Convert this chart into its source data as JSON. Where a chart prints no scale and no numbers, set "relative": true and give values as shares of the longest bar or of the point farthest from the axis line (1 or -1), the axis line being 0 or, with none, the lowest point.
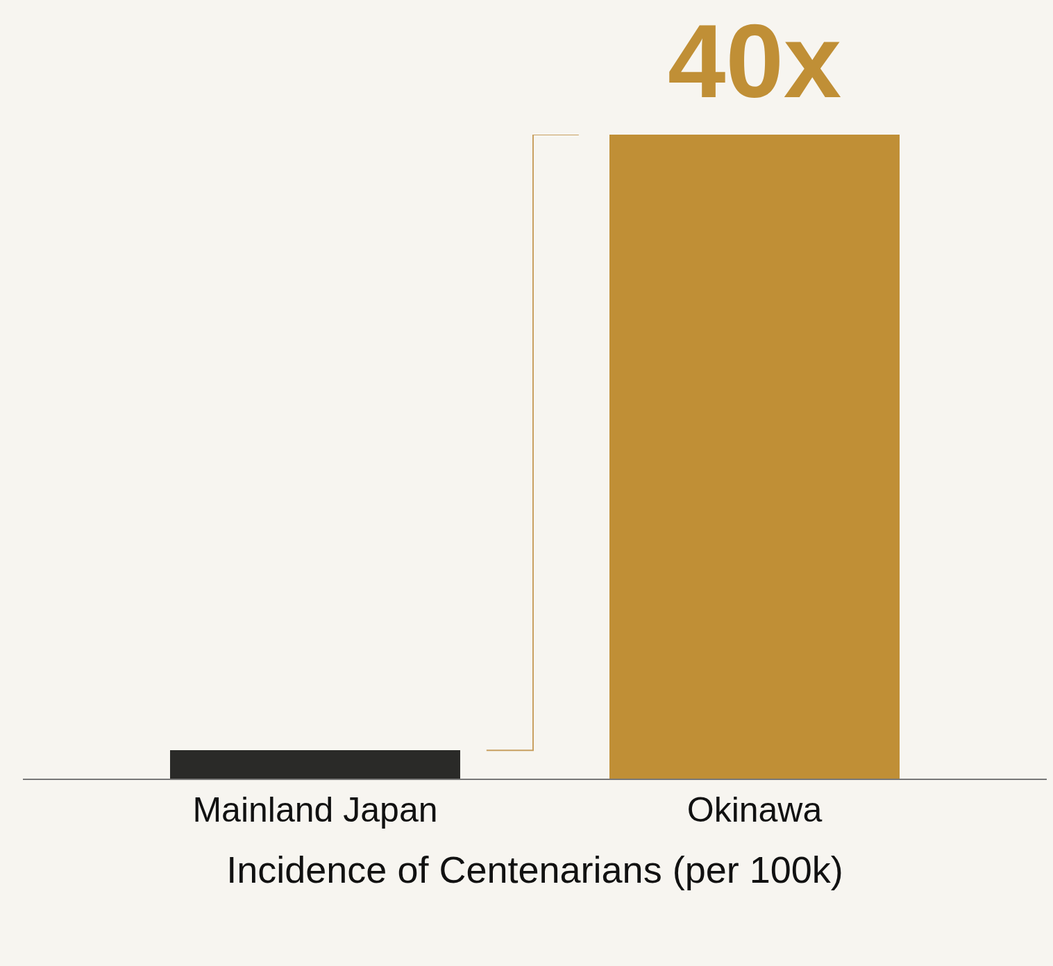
{
  "chart_data": {
    "type": "bar",
    "relative": true,
    "categories": [
      "Mainland Japan",
      "Okinawa"
    ],
    "values": [
      0.044,
      1
    ],
    "colors": [
      "#2a2a28",
      "#c08f36"
    ],
    "xlabel": "Incidence of Centenarians (per 100k)",
    "annotations": [
      {
        "text": "40x",
        "x": "Okinawa",
        "y": 1
      }
    ],
    "grid": false
  }
}
